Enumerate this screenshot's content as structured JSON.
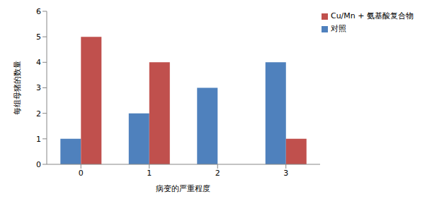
{
  "chart_data": {
    "type": "bar",
    "x_label": "病变的严重程度",
    "y_label": "每组母猪的数量",
    "categories": [
      "0",
      "1",
      "2",
      "3"
    ],
    "series": [
      {
        "name": "对照",
        "color": "#4F81BD",
        "values": [
          1,
          2,
          3,
          4
        ]
      },
      {
        "name": "Cu/Mn + 氨基酸复合物",
        "color": "#C0504D",
        "values": [
          5,
          4,
          0,
          1
        ]
      }
    ],
    "ylim": [
      0,
      6
    ],
    "yticks": [
      0,
      1,
      2,
      3,
      4,
      5,
      6
    ],
    "grid": false,
    "legend": "top-right"
  }
}
